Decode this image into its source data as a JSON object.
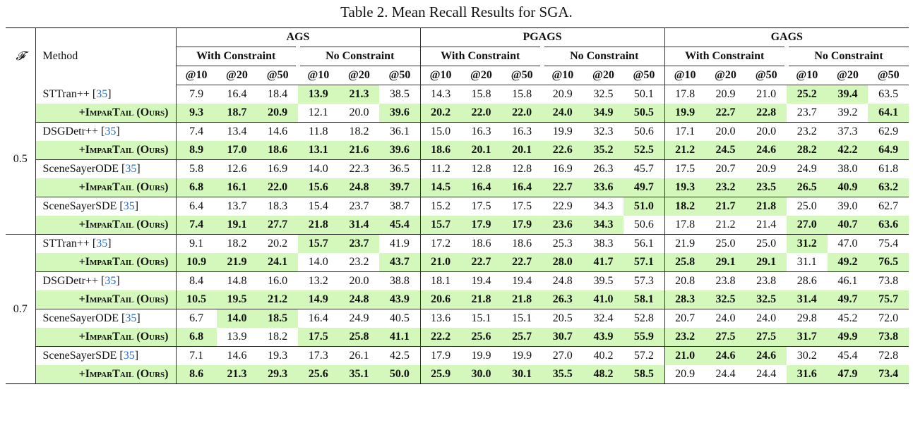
{
  "caption": "Table 2. Mean Recall Results for SGA.",
  "header": {
    "f_symbol": "𝓕",
    "method_label": "Method",
    "groups": [
      "AGS",
      "PGAGS",
      "GAGS"
    ],
    "sub_groups": [
      "With Constraint",
      "No Constraint"
    ],
    "k_labels": [
      "@10",
      "@20",
      "@50"
    ],
    "ref_open": "[",
    "ref_close": "]"
  },
  "blocks": [
    {
      "f": "0.5",
      "pairs": [
        {
          "baseline": {
            "name": "STTran++",
            "ref": "35",
            "values": [
              "7.9",
              "16.4",
              "18.4",
              "13.9",
              "21.3",
              "38.5",
              "14.3",
              "15.8",
              "15.8",
              "20.9",
              "32.5",
              "50.1",
              "17.8",
              "20.9",
              "21.0",
              "25.2",
              "39.4",
              "63.5"
            ],
            "bold": [
              false,
              false,
              false,
              true,
              true,
              false,
              false,
              false,
              false,
              false,
              false,
              false,
              false,
              false,
              false,
              true,
              true,
              false
            ]
          },
          "ours": {
            "name": "+ImparTail (Ours)",
            "values": [
              "9.3",
              "18.7",
              "20.9",
              "12.1",
              "20.0",
              "39.6",
              "20.2",
              "22.0",
              "22.0",
              "24.0",
              "34.9",
              "50.5",
              "19.9",
              "22.7",
              "22.8",
              "23.7",
              "39.2",
              "64.1"
            ],
            "bold": [
              true,
              true,
              true,
              false,
              false,
              true,
              true,
              true,
              true,
              true,
              true,
              true,
              true,
              true,
              true,
              false,
              false,
              true
            ]
          }
        },
        {
          "baseline": {
            "name": "DSGDetr++",
            "ref": "35",
            "values": [
              "7.4",
              "13.4",
              "14.6",
              "11.8",
              "18.2",
              "36.1",
              "15.0",
              "16.3",
              "16.3",
              "19.9",
              "32.3",
              "50.6",
              "17.1",
              "20.0",
              "20.0",
              "23.2",
              "37.3",
              "62.9"
            ],
            "bold": [
              false,
              false,
              false,
              false,
              false,
              false,
              false,
              false,
              false,
              false,
              false,
              false,
              false,
              false,
              false,
              false,
              false,
              false
            ]
          },
          "ours": {
            "name": "+ImparTail (Ours)",
            "values": [
              "8.9",
              "17.0",
              "18.6",
              "13.1",
              "21.6",
              "39.6",
              "18.6",
              "20.1",
              "20.1",
              "22.6",
              "35.2",
              "52.5",
              "21.2",
              "24.5",
              "24.6",
              "28.2",
              "42.2",
              "64.9"
            ],
            "bold": [
              true,
              true,
              true,
              true,
              true,
              true,
              true,
              true,
              true,
              true,
              true,
              true,
              true,
              true,
              true,
              true,
              true,
              true
            ]
          }
        },
        {
          "baseline": {
            "name": "SceneSayerODE",
            "ref": "35",
            "values": [
              "5.8",
              "12.6",
              "16.9",
              "14.0",
              "22.3",
              "36.5",
              "11.2",
              "12.8",
              "12.8",
              "16.9",
              "26.3",
              "45.7",
              "17.5",
              "20.7",
              "20.9",
              "24.9",
              "38.0",
              "61.8"
            ],
            "bold": [
              false,
              false,
              false,
              false,
              false,
              false,
              false,
              false,
              false,
              false,
              false,
              false,
              false,
              false,
              false,
              false,
              false,
              false
            ]
          },
          "ours": {
            "name": "+ImparTail (Ours)",
            "values": [
              "6.8",
              "16.1",
              "22.0",
              "15.6",
              "24.8",
              "39.7",
              "14.5",
              "16.4",
              "16.4",
              "22.7",
              "33.6",
              "49.7",
              "19.3",
              "23.2",
              "23.5",
              "26.5",
              "40.9",
              "63.2"
            ],
            "bold": [
              true,
              true,
              true,
              true,
              true,
              true,
              true,
              true,
              true,
              true,
              true,
              true,
              true,
              true,
              true,
              true,
              true,
              true
            ]
          }
        },
        {
          "baseline": {
            "name": "SceneSayerSDE",
            "ref": "35",
            "values": [
              "6.4",
              "13.7",
              "18.3",
              "15.4",
              "23.7",
              "38.7",
              "15.2",
              "17.5",
              "17.5",
              "22.9",
              "34.3",
              "51.0",
              "18.2",
              "21.7",
              "21.8",
              "25.0",
              "39.0",
              "62.7"
            ],
            "bold": [
              false,
              false,
              false,
              false,
              false,
              false,
              false,
              false,
              false,
              false,
              false,
              true,
              true,
              true,
              true,
              false,
              false,
              false
            ]
          },
          "ours": {
            "name": "+ImparTail (Ours)",
            "values": [
              "7.4",
              "19.1",
              "27.7",
              "21.8",
              "31.4",
              "45.4",
              "15.7",
              "17.9",
              "17.9",
              "23.6",
              "34.3",
              "50.6",
              "17.8",
              "21.2",
              "21.4",
              "27.0",
              "40.7",
              "63.6"
            ],
            "bold": [
              true,
              true,
              true,
              true,
              true,
              true,
              true,
              true,
              true,
              true,
              true,
              false,
              false,
              false,
              false,
              true,
              true,
              true
            ]
          }
        }
      ]
    },
    {
      "f": "0.7",
      "pairs": [
        {
          "baseline": {
            "name": "STTran++",
            "ref": "35",
            "values": [
              "9.1",
              "18.2",
              "20.2",
              "15.7",
              "23.7",
              "41.9",
              "17.2",
              "18.6",
              "18.6",
              "25.3",
              "38.3",
              "56.1",
              "21.9",
              "25.0",
              "25.0",
              "31.2",
              "47.0",
              "75.4"
            ],
            "bold": [
              false,
              false,
              false,
              true,
              true,
              false,
              false,
              false,
              false,
              false,
              false,
              false,
              false,
              false,
              false,
              true,
              false,
              false
            ]
          },
          "ours": {
            "name": "+ImparTail (Ours)",
            "values": [
              "10.9",
              "21.9",
              "24.1",
              "14.0",
              "23.2",
              "43.7",
              "21.0",
              "22.7",
              "22.7",
              "28.0",
              "41.7",
              "57.1",
              "25.8",
              "29.1",
              "29.1",
              "31.1",
              "49.2",
              "76.5"
            ],
            "bold": [
              true,
              true,
              true,
              false,
              false,
              true,
              true,
              true,
              true,
              true,
              true,
              true,
              true,
              true,
              true,
              false,
              true,
              true
            ]
          }
        },
        {
          "baseline": {
            "name": "DSGDetr++",
            "ref": "35",
            "values": [
              "8.4",
              "14.8",
              "16.0",
              "13.2",
              "20.0",
              "38.8",
              "18.1",
              "19.4",
              "19.4",
              "24.8",
              "39.5",
              "57.3",
              "20.8",
              "23.8",
              "23.8",
              "28.6",
              "46.1",
              "73.8"
            ],
            "bold": [
              false,
              false,
              false,
              false,
              false,
              false,
              false,
              false,
              false,
              false,
              false,
              false,
              false,
              false,
              false,
              false,
              false,
              false
            ]
          },
          "ours": {
            "name": "+ImparTail (Ours)",
            "values": [
              "10.5",
              "19.5",
              "21.2",
              "14.9",
              "24.8",
              "43.9",
              "20.6",
              "21.8",
              "21.8",
              "26.3",
              "41.0",
              "58.1",
              "28.3",
              "32.5",
              "32.5",
              "31.4",
              "49.7",
              "75.7"
            ],
            "bold": [
              true,
              true,
              true,
              true,
              true,
              true,
              true,
              true,
              true,
              true,
              true,
              true,
              true,
              true,
              true,
              true,
              true,
              true
            ]
          }
        },
        {
          "baseline": {
            "name": "SceneSayerODE",
            "ref": "35",
            "values": [
              "6.7",
              "14.0",
              "18.5",
              "16.4",
              "24.9",
              "40.5",
              "13.6",
              "15.1",
              "15.1",
              "20.5",
              "32.4",
              "52.8",
              "20.7",
              "24.0",
              "24.0",
              "29.8",
              "45.2",
              "72.0"
            ],
            "bold": [
              false,
              true,
              true,
              false,
              false,
              false,
              false,
              false,
              false,
              false,
              false,
              false,
              false,
              false,
              false,
              false,
              false,
              false
            ]
          },
          "ours": {
            "name": "+ImparTail (Ours)",
            "values": [
              "6.8",
              "13.9",
              "18.2",
              "17.5",
              "25.8",
              "41.1",
              "22.2",
              "25.6",
              "25.7",
              "30.7",
              "43.9",
              "55.9",
              "23.2",
              "27.5",
              "27.5",
              "31.7",
              "49.9",
              "73.8"
            ],
            "bold": [
              true,
              false,
              false,
              true,
              true,
              true,
              true,
              true,
              true,
              true,
              true,
              true,
              true,
              true,
              true,
              true,
              true,
              true
            ]
          }
        },
        {
          "baseline": {
            "name": "SceneSayerSDE",
            "ref": "35",
            "values": [
              "7.1",
              "14.6",
              "19.3",
              "17.3",
              "26.1",
              "42.5",
              "17.9",
              "19.9",
              "19.9",
              "27.0",
              "40.2",
              "57.2",
              "21.0",
              "24.6",
              "24.6",
              "30.2",
              "45.4",
              "72.8"
            ],
            "bold": [
              false,
              false,
              false,
              false,
              false,
              false,
              false,
              false,
              false,
              false,
              false,
              false,
              true,
              true,
              true,
              false,
              false,
              false
            ]
          },
          "ours": {
            "name": "+ImparTail (Ours)",
            "values": [
              "8.6",
              "21.3",
              "29.3",
              "25.6",
              "35.1",
              "50.0",
              "25.9",
              "30.0",
              "30.1",
              "35.5",
              "48.2",
              "58.5",
              "20.9",
              "24.4",
              "24.4",
              "31.6",
              "47.9",
              "73.4"
            ],
            "bold": [
              true,
              true,
              true,
              true,
              true,
              true,
              true,
              true,
              true,
              true,
              true,
              true,
              false,
              false,
              false,
              true,
              true,
              true
            ]
          }
        }
      ]
    }
  ],
  "colors": {
    "highlight": "#d4f7bb",
    "cite": "#2a6bc4"
  }
}
